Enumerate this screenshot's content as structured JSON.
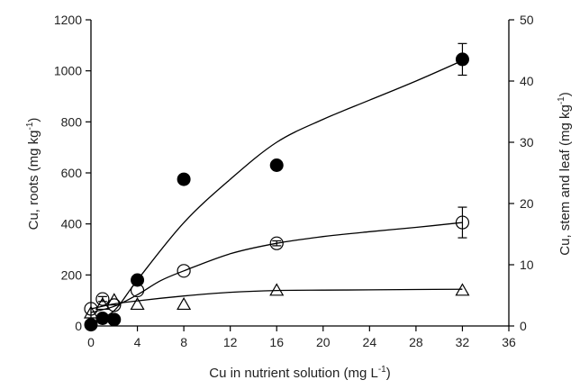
{
  "chart_data": {
    "type": "scatter",
    "title": "",
    "xlabel": "Cu in nutrient solution (mg L -1)",
    "xlabel_main": "Cu in nutrient solution (mg L",
    "xlabel_sup": "-1",
    "xlabel_close": ")",
    "ylabel": "Cu, roots (mg kg-1)",
    "ylabel_main": "Cu, roots (mg kg",
    "ylabel_sup": "-1",
    "ylabel_close": ")",
    "y2label": "Cu, stem and leaf (mg kg-1)",
    "y2label_main": "Cu, stem and leaf (mg kg",
    "y2label_sup": "-1",
    "y2label_close": ")",
    "xlim": [
      0,
      36
    ],
    "ylim": [
      0,
      1200
    ],
    "y2lim": [
      0,
      50
    ],
    "xticks": [
      0,
      4,
      8,
      12,
      16,
      20,
      24,
      28,
      32,
      36
    ],
    "yticks": [
      0,
      200,
      400,
      600,
      800,
      1000,
      1200
    ],
    "y2ticks": [
      0,
      10,
      20,
      30,
      40,
      50
    ],
    "grid": false,
    "series": [
      {
        "axis": "left",
        "marker": "filled-circle",
        "x": [
          0,
          1,
          2,
          4,
          8,
          16,
          32
        ],
        "y": [
          5,
          30,
          25,
          180,
          575,
          630,
          1045
        ],
        "err": [
          0,
          0,
          0,
          0,
          18,
          0,
          62
        ],
        "fit_x": [
          0,
          2,
          4,
          8,
          12,
          16,
          20,
          24,
          28,
          32
        ],
        "fit_y": [
          10,
          60,
          180,
          405,
          575,
          720,
          810,
          885,
          960,
          1040
        ]
      },
      {
        "axis": "right",
        "marker": "open-circle",
        "x": [
          0,
          1,
          2,
          4,
          8,
          16,
          32
        ],
        "y": [
          2.8,
          4.4,
          3.4,
          5.8,
          9,
          13.5,
          16.9
        ],
        "err": [
          0,
          0.4,
          0,
          0,
          0,
          0.4,
          2.5
        ],
        "fit_x": [
          0,
          2,
          4,
          6,
          8,
          12,
          16,
          20,
          24,
          28,
          32
        ],
        "fit_y": [
          2.2,
          3.2,
          5.1,
          7.4,
          9,
          11.8,
          13.5,
          14.6,
          15.4,
          16.1,
          16.9
        ]
      },
      {
        "axis": "right",
        "marker": "open-triangle",
        "x": [
          0,
          1,
          2,
          4,
          8,
          16,
          32
        ],
        "y": [
          2.1,
          3.5,
          4.2,
          3.5,
          3.5,
          5.8,
          5.8
        ],
        "err": [
          0,
          0,
          0,
          0,
          0,
          0,
          0
        ],
        "fit_x": [
          0,
          2,
          4,
          8,
          12,
          16,
          20,
          24,
          28,
          32
        ],
        "fit_y": [
          2.8,
          3.6,
          4.1,
          4.9,
          5.5,
          5.8,
          5.85,
          5.9,
          5.95,
          6
        ]
      }
    ]
  }
}
